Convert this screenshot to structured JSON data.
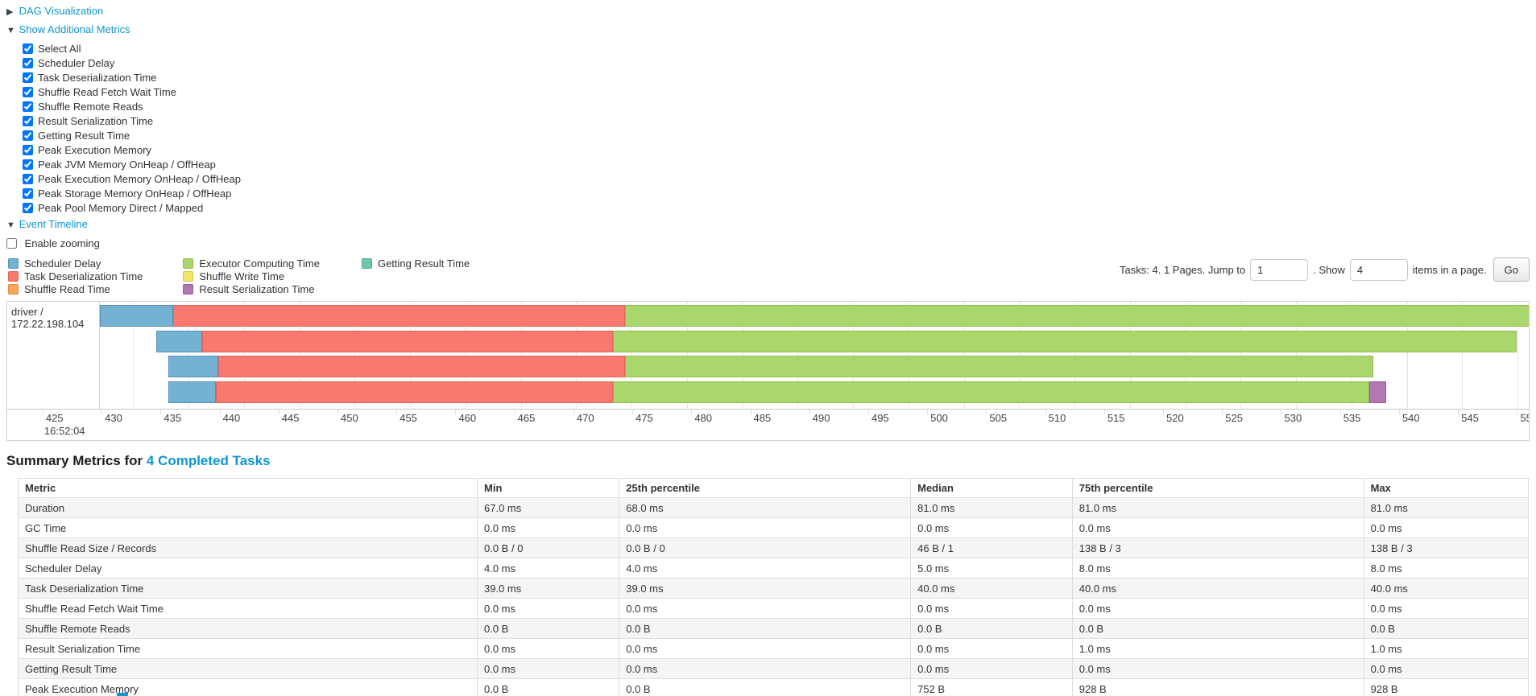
{
  "colors": {
    "link_blue": "#0e96d2",
    "grid": "#e7e7e7",
    "border": "#d0d0d0"
  },
  "toggles": {
    "dag": {
      "label": "DAG Visualization",
      "state": "collapsed"
    },
    "metrics": {
      "label": "Show Additional Metrics",
      "state": "expanded"
    },
    "timeline": {
      "label": "Event Timeline",
      "state": "expanded"
    },
    "zooming": {
      "label": "Enable zooming",
      "checked": false
    }
  },
  "metric_checkboxes": [
    {
      "label": "Select All",
      "checked": true
    },
    {
      "label": "Scheduler Delay",
      "checked": true
    },
    {
      "label": "Task Deserialization Time",
      "checked": true
    },
    {
      "label": "Shuffle Read Fetch Wait Time",
      "checked": true
    },
    {
      "label": "Shuffle Remote Reads",
      "checked": true
    },
    {
      "label": "Result Serialization Time",
      "checked": true
    },
    {
      "label": "Getting Result Time",
      "checked": true
    },
    {
      "label": "Peak Execution Memory",
      "checked": true
    },
    {
      "label": "Peak JVM Memory OnHeap / OffHeap",
      "checked": true
    },
    {
      "label": "Peak Execution Memory OnHeap / OffHeap",
      "checked": true
    },
    {
      "label": "Peak Storage Memory OnHeap / OffHeap",
      "checked": true
    },
    {
      "label": "Peak Pool Memory Direct / Mapped",
      "checked": true
    }
  ],
  "legend_columns": [
    [
      {
        "label": "Scheduler Delay",
        "color": "blue"
      },
      {
        "label": "Task Deserialization Time",
        "color": "red"
      },
      {
        "label": "Shuffle Read Time",
        "color": "orange"
      }
    ],
    [
      {
        "label": "Executor Computing Time",
        "color": "green"
      },
      {
        "label": "Shuffle Write Time",
        "color": "yellow"
      },
      {
        "label": "Result Serialization Time",
        "color": "purple"
      }
    ],
    [
      {
        "label": "Getting Result Time",
        "color": "teal"
      }
    ]
  ],
  "segment_colors": {
    "blue": {
      "fill": "#74b2d4",
      "border": "#5591b7"
    },
    "red": {
      "fill": "#f8796f",
      "border": "#e0655c"
    },
    "orange": {
      "fill": "#f9a65c",
      "border": "#e08c42"
    },
    "green": {
      "fill": "#aad76b",
      "border": "#8fc04c"
    },
    "yellow": {
      "fill": "#f4e46a",
      "border": "#d9c84e"
    },
    "purple": {
      "fill": "#b377b4",
      "border": "#995a9b"
    },
    "teal": {
      "fill": "#6ec6b0",
      "border": "#53ab95"
    }
  },
  "pagination": {
    "prefix": "Tasks: 4. 1 Pages. Jump to",
    "jump_value": "1",
    "mid": ". Show",
    "show_value": "4",
    "suffix": "items in a page.",
    "go_label": "Go"
  },
  "chart_data": {
    "type": "timeline",
    "group_label": "driver / 172.22.198.104",
    "axis": {
      "min": 422,
      "max": 551,
      "tick_start": 425,
      "tick_end": 550,
      "tick_step": 5,
      "time_label": "16:52:04",
      "time_label_at": 425
    },
    "row_tops": [
      4,
      36,
      67,
      99
    ],
    "tasks": [
      {
        "segments": [
          {
            "color": "blue",
            "from": 422,
            "to": 428.6
          },
          {
            "color": "red",
            "from": 428.6,
            "to": 469.4
          },
          {
            "color": "green",
            "from": 469.4,
            "to": 551.5
          }
        ]
      },
      {
        "segments": [
          {
            "color": "blue",
            "from": 427.1,
            "to": 431.2
          },
          {
            "color": "red",
            "from": 431.2,
            "to": 468.3
          },
          {
            "color": "green",
            "from": 468.3,
            "to": 549.9
          }
        ]
      },
      {
        "segments": [
          {
            "color": "blue",
            "from": 428.2,
            "to": 432.7
          },
          {
            "color": "red",
            "from": 432.7,
            "to": 469.4
          },
          {
            "color": "green",
            "from": 469.4,
            "to": 537.0
          }
        ]
      },
      {
        "segments": [
          {
            "color": "blue",
            "from": 428.2,
            "to": 432.5
          },
          {
            "color": "red",
            "from": 432.5,
            "to": 468.3
          },
          {
            "color": "green",
            "from": 468.3,
            "to": 536.6
          },
          {
            "color": "purple",
            "from": 536.6,
            "to": 538.1
          }
        ]
      }
    ]
  },
  "summary": {
    "title_prefix": "Summary Metrics for",
    "title_link": "4 Completed Tasks",
    "columns": [
      "Metric",
      "Min",
      "25th percentile",
      "Median",
      "75th percentile",
      "Max"
    ],
    "column_widths": [
      "30.4%",
      "9.4%",
      "19.3%",
      "10.7%",
      "19.3%",
      "10.9%"
    ],
    "rows": [
      [
        "Duration",
        "67.0 ms",
        "68.0 ms",
        "81.0 ms",
        "81.0 ms",
        "81.0 ms"
      ],
      [
        "GC Time",
        "0.0 ms",
        "0.0 ms",
        "0.0 ms",
        "0.0 ms",
        "0.0 ms"
      ],
      [
        "Shuffle Read Size / Records",
        "0.0 B / 0",
        "0.0 B / 0",
        "46 B / 1",
        "138 B / 3",
        "138 B / 3"
      ],
      [
        "Scheduler Delay",
        "4.0 ms",
        "4.0 ms",
        "5.0 ms",
        "8.0 ms",
        "8.0 ms"
      ],
      [
        "Task Deserialization Time",
        "39.0 ms",
        "39.0 ms",
        "40.0 ms",
        "40.0 ms",
        "40.0 ms"
      ],
      [
        "Shuffle Read Fetch Wait Time",
        "0.0 ms",
        "0.0 ms",
        "0.0 ms",
        "0.0 ms",
        "0.0 ms"
      ],
      [
        "Shuffle Remote Reads",
        "0.0 B",
        "0.0 B",
        "0.0 B",
        "0.0 B",
        "0.0 B"
      ],
      [
        "Result Serialization Time",
        "0.0 ms",
        "0.0 ms",
        "0.0 ms",
        "1.0 ms",
        "1.0 ms"
      ],
      [
        "Getting Result Time",
        "0.0 ms",
        "0.0 ms",
        "0.0 ms",
        "0.0 ms",
        "0.0 ms"
      ],
      [
        "Peak Execution Memory",
        "0.0 B",
        "0.0 B",
        "752 B",
        "928 B",
        "928 B"
      ]
    ]
  }
}
